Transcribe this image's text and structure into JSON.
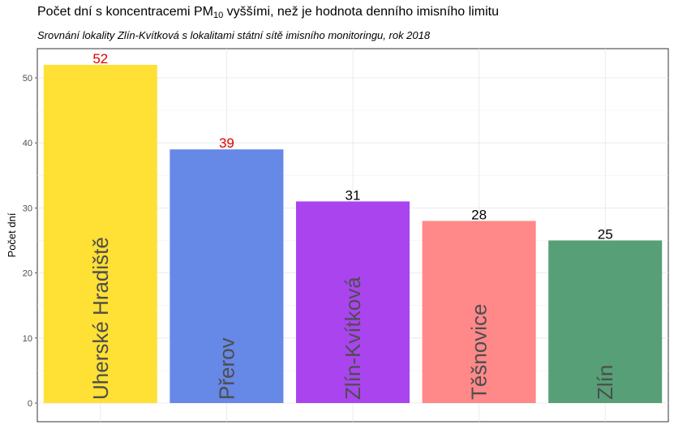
{
  "chart_data": {
    "type": "bar",
    "title_main": "Počet dní s koncentracemi PM",
    "title_sub": "10",
    "title_rest": " vyššími, než je hodnota denního imisního limitu",
    "subtitle": "Srovnání lokality Zlín-Kvítková s lokalitami státní sítě imisního monitoringu, rok 2018",
    "xlabel": "",
    "ylabel": "Počet dní",
    "ylim": [
      0,
      55
    ],
    "yticks": [
      0,
      10,
      20,
      30,
      40,
      50
    ],
    "grid": true,
    "categories": [
      "Uherské Hradiště",
      "Přerov",
      "Zlín-Kvítková",
      "Těšnovice",
      "Zlín"
    ],
    "values": [
      52,
      39,
      31,
      28,
      25
    ],
    "bar_colors": [
      "#FFE034",
      "#6688E6",
      "#AA44EE",
      "#FF8888",
      "#579F77"
    ],
    "value_label_colors": [
      "#DD0000",
      "#DD0000",
      "#000000",
      "#000000",
      "#000000"
    ]
  }
}
